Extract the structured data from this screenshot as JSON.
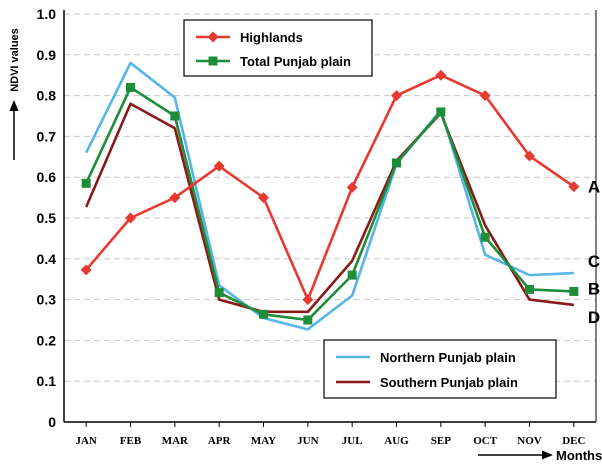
{
  "chart_data": {
    "type": "line",
    "title": "",
    "ylabel": "NDVI values",
    "xlabel": "Months",
    "ylim": [
      0,
      1.0
    ],
    "yticks": [
      "0",
      "0.1",
      "0.2",
      "0.3",
      "0.4",
      "0.5",
      "0.6",
      "0.7",
      "0.8",
      "0.9",
      "1.0"
    ],
    "categories": [
      "JAN",
      "FEB",
      "MAR",
      "APR",
      "MAY",
      "JUN",
      "JUL",
      "AUG",
      "SEP",
      "OCT",
      "NOV",
      "DEC"
    ],
    "grid": "horizontal-dashed",
    "series": [
      {
        "name": "Highlands",
        "color": "#e8392f",
        "marker": "diamond",
        "end_label": "A",
        "values": [
          0.373,
          0.5,
          0.55,
          0.627,
          0.55,
          0.3,
          0.575,
          0.8,
          0.85,
          0.8,
          0.652,
          0.577
        ]
      },
      {
        "name": "Total Punjab plain",
        "color": "#1f8c3a",
        "marker": "square",
        "end_label": "B",
        "values": [
          0.585,
          0.82,
          0.75,
          0.317,
          0.264,
          0.25,
          0.36,
          0.635,
          0.76,
          0.453,
          0.325,
          0.32
        ]
      },
      {
        "name": "Northern Punjab plain",
        "color": "#56b4e6",
        "marker": "none",
        "end_label": "C",
        "values": [
          0.66,
          0.88,
          0.795,
          0.335,
          0.255,
          0.227,
          0.31,
          0.632,
          0.765,
          0.41,
          0.36,
          0.365
        ]
      },
      {
        "name": "Southern Punjab plain",
        "color": "#8b1a1a",
        "marker": "none",
        "end_label": "D",
        "values": [
          0.527,
          0.78,
          0.72,
          0.3,
          0.27,
          0.27,
          0.395,
          0.64,
          0.757,
          0.482,
          0.3,
          0.287
        ]
      }
    ],
    "legends": [
      {
        "position": "top-center",
        "entries": [
          "Highlands",
          "Total Punjab plain"
        ]
      },
      {
        "position": "bottom-right",
        "entries": [
          "Northern Punjab plain",
          "Southern Punjab plain"
        ]
      }
    ]
  }
}
